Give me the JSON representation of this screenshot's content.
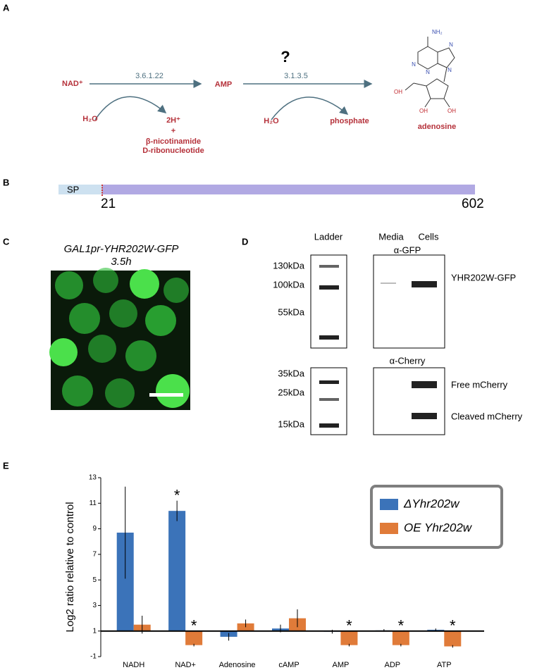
{
  "panel_a": {
    "label": "A",
    "substrate": "NAD⁺",
    "enzyme1": "3.6.1.22",
    "intermediate": "AMP",
    "question": "?",
    "enzyme2": "3.1.3.5",
    "water1": "H₂O",
    "products1": [
      "2H⁺",
      "+",
      "β-nicotinamide",
      "D-ribonucleotide"
    ],
    "water2": "H₂O",
    "product2": "phosphate",
    "product": "adenosine",
    "structure_labels": {
      "amine": "NH₂",
      "n1": "N",
      "n3": "N",
      "n7": "N",
      "n9": "N",
      "oh5": "OH",
      "oh3": "OH",
      "oh2": "OH"
    }
  },
  "panel_b": {
    "label": "B",
    "domain": "SP",
    "start": "21",
    "end": "602"
  },
  "panel_c": {
    "label": "C",
    "title": "GAL1pr-YHR202W-GFP",
    "time": "3.5h"
  },
  "panel_d": {
    "label": "D",
    "ladder": "Ladder",
    "lanes": [
      "Media",
      "Cells"
    ],
    "antibodies": [
      "α-GFP",
      "α-Cherry"
    ],
    "markers_top": [
      "130kDa",
      "100kDa",
      "55kDa"
    ],
    "markers_bottom": [
      "35kDa",
      "25kDa",
      "15kDa"
    ],
    "bands": [
      "YHR202W-GFP",
      "Free mCherry",
      "Cleaved mCherry"
    ]
  },
  "chart_data": {
    "type": "bar",
    "label": "E",
    "ylabel": "Log2 ratio relative to control",
    "categories": [
      "NADH",
      "NAD+",
      "Adenosine",
      "cAMP",
      "AMP",
      "ADP",
      "ATP"
    ],
    "series": [
      {
        "name": "ΔYhr202w",
        "color": "#3b73b9",
        "values": [
          8.7,
          10.4,
          0.55,
          1.2,
          0.95,
          1.05,
          1.1
        ],
        "errors": [
          3.6,
          0.8,
          0.3,
          0.3,
          0.15,
          0.1,
          0.1
        ]
      },
      {
        "name": "OE Yhr202w",
        "color": "#e07b39",
        "values": [
          1.5,
          -0.1,
          1.6,
          2.0,
          -0.1,
          -0.1,
          -0.2
        ],
        "errors": [
          0.7,
          0.1,
          0.3,
          0.7,
          0.1,
          0.1,
          0.1
        ]
      }
    ],
    "baseline": 1,
    "ylim": [
      -1,
      13
    ],
    "yticks": [
      -1,
      1,
      3,
      5,
      7,
      9,
      11,
      13
    ],
    "annotations": [
      {
        "text": "*",
        "category": "NAD+",
        "series": "ΔYhr202w"
      },
      {
        "text": "*",
        "category": "NAD+",
        "series": "OE Yhr202w"
      },
      {
        "text": "*",
        "category": "AMP",
        "series": "OE Yhr202w"
      },
      {
        "text": "*",
        "category": "ADP",
        "series": "OE Yhr202w"
      },
      {
        "text": "*",
        "category": "ATP",
        "series": "OE Yhr202w"
      }
    ],
    "legend": "upper right"
  }
}
